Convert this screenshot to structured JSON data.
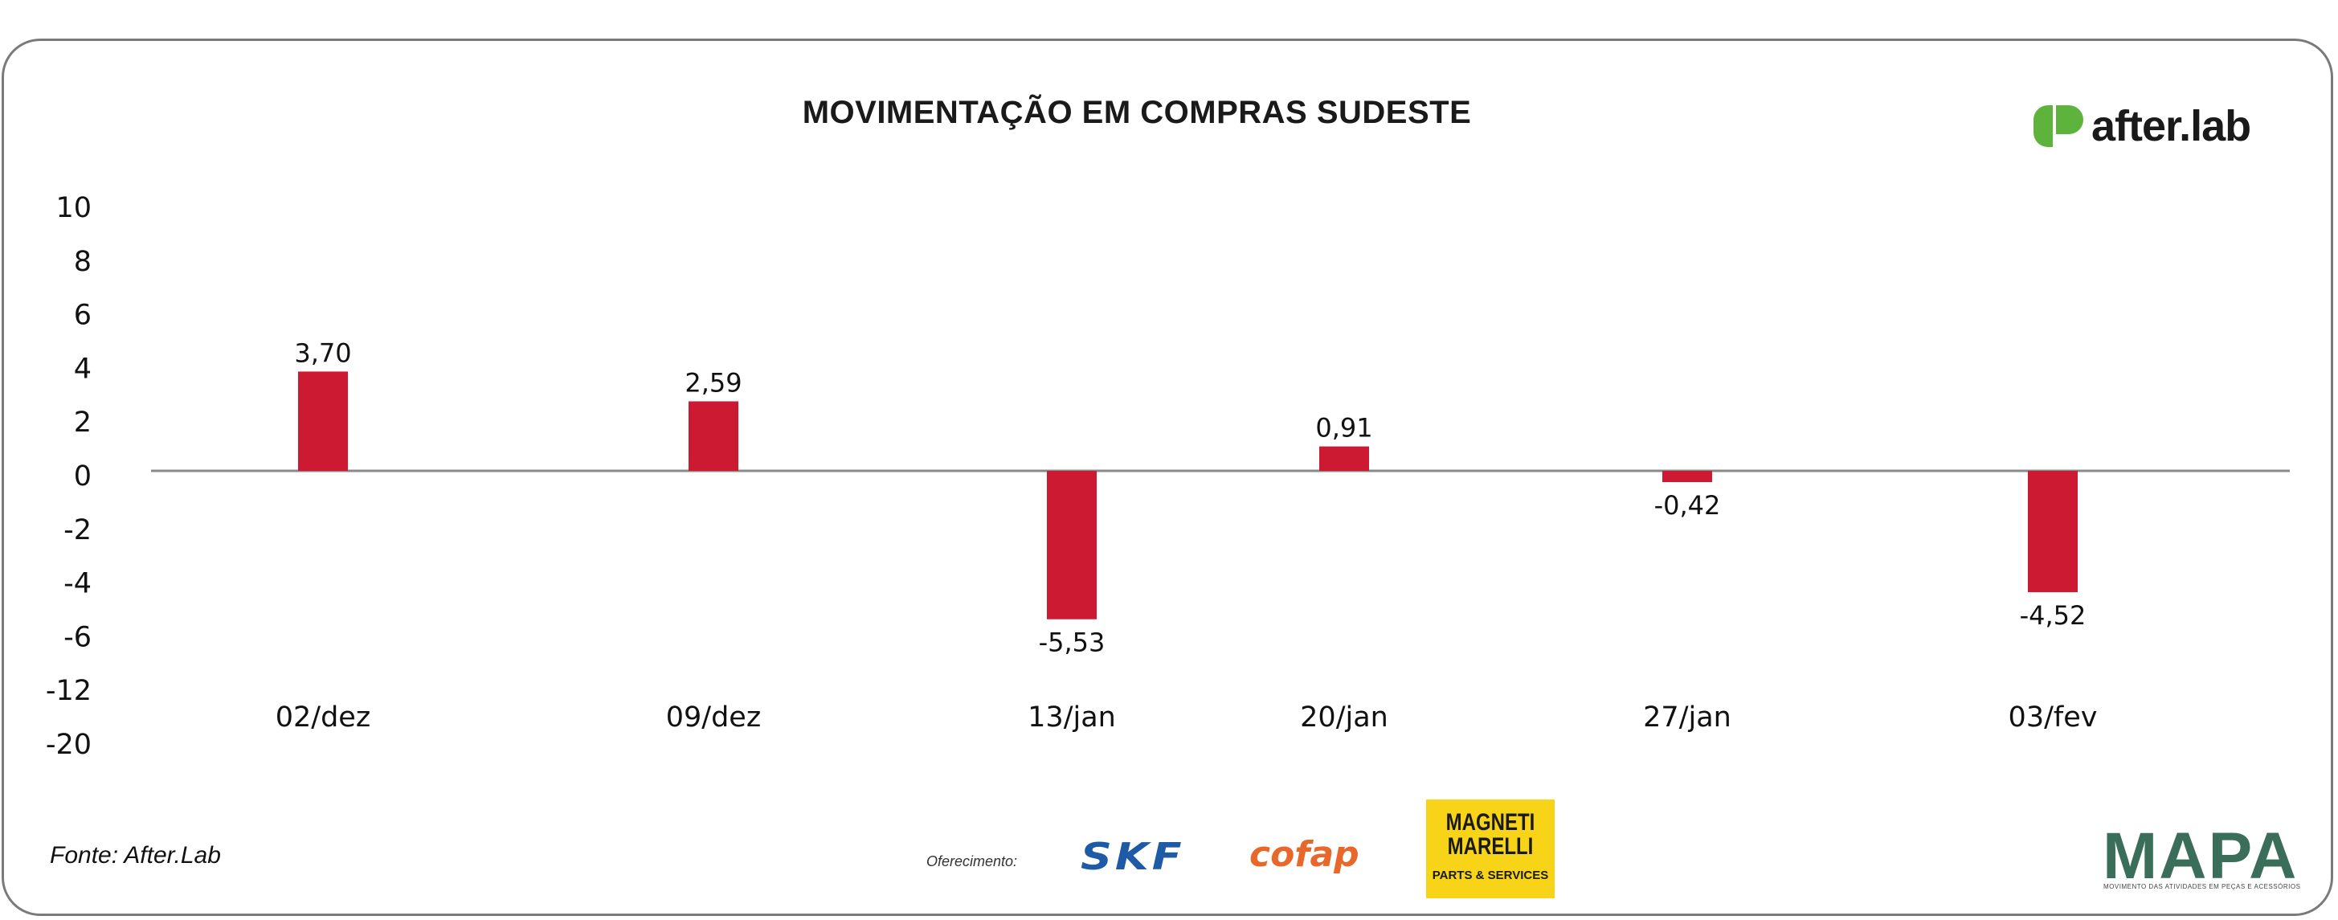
{
  "header": {
    "title": "MOVIMENTAÇÃO EM COMPRAS SUDESTE",
    "brand": "after.lab"
  },
  "footer": {
    "source": "Fonte: After.Lab",
    "sponsor_label": "Oferecimento:",
    "sponsors": {
      "skf": "SKF",
      "cofap": "cofap",
      "magneti_name": "MAGNETI\nMARELLI",
      "magneti_sub": "PARTS & SERVICES"
    },
    "mapa": "MAPA",
    "mapa_sub": "MOVIMENTO DAS ATIVIDADES EM PEÇAS E ACESSÓRIOS"
  },
  "colors": {
    "bar": "#cc1a33",
    "axis": "#8a8a8a",
    "brand_green": "#5db33b",
    "mapa": "#3a6e5a"
  },
  "chart_data": {
    "type": "bar",
    "title": "MOVIMENTAÇÃO EM COMPRAS SUDESTE",
    "xlabel": "",
    "ylabel": "",
    "y_tick_labels": [
      "10",
      "8",
      "6",
      "4",
      "2",
      "0",
      "-2",
      "-4",
      "-6",
      "-12",
      "-20"
    ],
    "categories": [
      "02/dez",
      "09/dez",
      "13/jan",
      "20/jan",
      "27/jan",
      "03/fev"
    ],
    "values": [
      3.7,
      2.59,
      -5.53,
      0.91,
      -0.42,
      -4.52
    ],
    "value_labels": [
      "3,70",
      "2,59",
      "-5,53",
      "0,91",
      "-0,42",
      "-4,52"
    ],
    "grid": false,
    "legend": "none"
  }
}
